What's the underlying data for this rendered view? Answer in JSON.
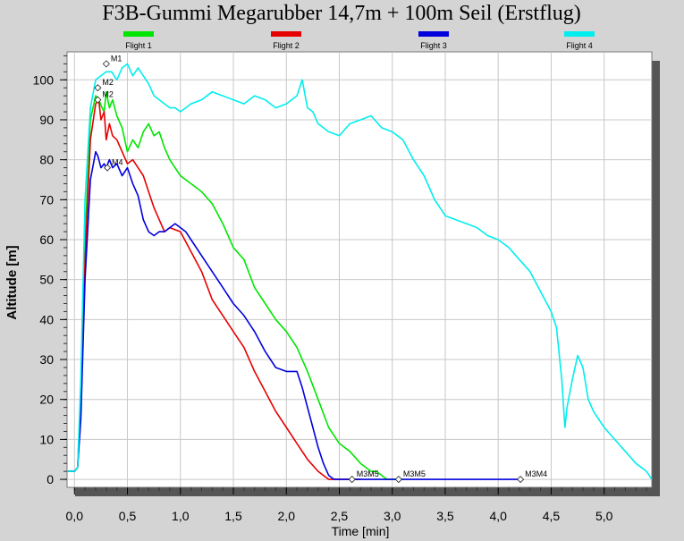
{
  "chart_data": {
    "type": "line",
    "title": "F3B-Gummi Megarubber 14,7m + 100m Seil (Erstflug)",
    "xlabel": "Time [min]",
    "ylabel": "Altitude [m]",
    "xlim": [
      -0.07,
      5.45
    ],
    "ylim": [
      -2,
      107
    ],
    "x_ticks": [
      0.0,
      0.5,
      1.0,
      1.5,
      2.0,
      2.5,
      3.0,
      3.5,
      4.0,
      4.5,
      5.0
    ],
    "x_tick_labels": [
      "0,0",
      "0,5",
      "1,0",
      "1,5",
      "2,0",
      "2,5",
      "3,0",
      "3,5",
      "4,0",
      "4,5",
      "5,0"
    ],
    "y_ticks": [
      0,
      10,
      20,
      30,
      40,
      50,
      60,
      70,
      80,
      90,
      100
    ],
    "y_tick_labels": [
      "0",
      "10",
      "20",
      "30",
      "40",
      "50",
      "60",
      "70",
      "80",
      "90",
      "100"
    ],
    "grid": true,
    "legend_position": "top",
    "series": [
      {
        "name": "Flight 1",
        "color": "#00e600",
        "x": [
          -0.07,
          0.0,
          0.03,
          0.06,
          0.1,
          0.15,
          0.2,
          0.23,
          0.26,
          0.28,
          0.3,
          0.33,
          0.36,
          0.4,
          0.45,
          0.5,
          0.55,
          0.6,
          0.65,
          0.7,
          0.75,
          0.8,
          0.85,
          0.9,
          0.95,
          1.0,
          1.05,
          1.1,
          1.2,
          1.3,
          1.4,
          1.5,
          1.6,
          1.7,
          1.8,
          1.9,
          2.0,
          2.1,
          2.2,
          2.3,
          2.4,
          2.5,
          2.6,
          2.7,
          2.75,
          2.8,
          2.85,
          2.9,
          2.95,
          3.0,
          3.05,
          3.1
        ],
        "y": [
          2,
          2,
          3,
          20,
          60,
          90,
          96,
          95,
          93,
          92,
          97,
          93,
          95,
          91,
          88,
          82,
          85,
          83,
          87,
          89,
          86,
          87,
          83,
          80,
          78,
          76,
          75,
          74,
          72,
          69,
          64,
          58,
          55,
          48,
          44,
          40,
          37,
          33,
          27,
          20,
          13,
          9,
          7,
          4,
          3,
          2,
          2,
          1,
          0,
          0,
          0,
          0
        ]
      },
      {
        "name": "Flight 2",
        "color": "#e60000",
        "x": [
          -0.07,
          0.0,
          0.03,
          0.06,
          0.1,
          0.15,
          0.2,
          0.23,
          0.25,
          0.28,
          0.3,
          0.33,
          0.36,
          0.4,
          0.45,
          0.5,
          0.55,
          0.6,
          0.65,
          0.7,
          0.75,
          0.8,
          0.85,
          0.9,
          1.0,
          1.1,
          1.2,
          1.3,
          1.4,
          1.5,
          1.6,
          1.7,
          1.8,
          1.9,
          2.0,
          2.1,
          2.2,
          2.3,
          2.35,
          2.4,
          2.45,
          2.5,
          2.55,
          2.6,
          2.65,
          2.7
        ],
        "y": [
          2,
          2,
          3,
          20,
          55,
          85,
          94,
          95,
          90,
          92,
          85,
          89,
          86,
          85,
          82,
          79,
          80,
          78,
          76,
          72,
          68,
          65,
          62,
          63,
          62,
          57,
          52,
          45,
          41,
          37,
          33,
          27,
          22,
          17,
          13,
          9,
          5,
          2,
          1,
          0,
          0,
          0,
          0,
          0,
          0,
          0
        ]
      },
      {
        "name": "Flight 3",
        "color": "#0000dd",
        "x": [
          -0.07,
          0.0,
          0.03,
          0.06,
          0.1,
          0.15,
          0.2,
          0.22,
          0.25,
          0.28,
          0.3,
          0.33,
          0.36,
          0.4,
          0.45,
          0.5,
          0.55,
          0.6,
          0.65,
          0.7,
          0.75,
          0.8,
          0.85,
          0.9,
          0.95,
          1.0,
          1.05,
          1.1,
          1.2,
          1.3,
          1.4,
          1.5,
          1.6,
          1.7,
          1.8,
          1.9,
          2.0,
          2.1,
          2.15,
          2.2,
          2.25,
          2.3,
          2.35,
          2.4,
          2.45,
          2.5,
          2.7,
          3.0,
          3.3,
          3.5,
          3.7,
          4.0,
          4.2
        ],
        "y": [
          2,
          2,
          3,
          15,
          50,
          75,
          82,
          81,
          78,
          79,
          78,
          80,
          78,
          79,
          76,
          78,
          74,
          71,
          65,
          62,
          61,
          62,
          62,
          63,
          64,
          63,
          62,
          60,
          56,
          52,
          48,
          44,
          41,
          37,
          32,
          28,
          27,
          27,
          23,
          18,
          13,
          8,
          4,
          1,
          0,
          0,
          0,
          0,
          0,
          0,
          0,
          0,
          0
        ]
      },
      {
        "name": "Flight 4",
        "color": "#00eeee",
        "x": [
          -0.07,
          0.0,
          0.03,
          0.06,
          0.1,
          0.15,
          0.2,
          0.25,
          0.3,
          0.35,
          0.4,
          0.45,
          0.5,
          0.55,
          0.6,
          0.65,
          0.7,
          0.75,
          0.8,
          0.85,
          0.9,
          0.95,
          1.0,
          1.05,
          1.1,
          1.2,
          1.3,
          1.4,
          1.5,
          1.6,
          1.7,
          1.8,
          1.9,
          2.0,
          2.1,
          2.15,
          2.2,
          2.25,
          2.3,
          2.4,
          2.5,
          2.6,
          2.7,
          2.8,
          2.9,
          3.0,
          3.1,
          3.2,
          3.3,
          3.4,
          3.5,
          3.6,
          3.7,
          3.8,
          3.9,
          4.0,
          4.1,
          4.2,
          4.3,
          4.4,
          4.5,
          4.55,
          4.6,
          4.63,
          4.65,
          4.7,
          4.75,
          4.8,
          4.85,
          4.9,
          5.0,
          5.1,
          5.2,
          5.3,
          5.4,
          5.45
        ],
        "y": [
          2,
          2,
          3,
          25,
          70,
          93,
          100,
          101,
          102,
          102,
          100,
          103,
          104,
          101,
          103,
          101,
          99,
          96,
          95,
          94,
          93,
          93,
          92,
          93,
          94,
          95,
          97,
          96,
          95,
          94,
          96,
          95,
          93,
          94,
          96,
          100,
          93,
          92,
          89,
          87,
          86,
          89,
          90,
          91,
          88,
          87,
          85,
          80,
          76,
          70,
          66,
          65,
          64,
          63,
          61,
          60,
          58,
          55,
          52,
          47,
          42,
          38,
          25,
          13,
          18,
          25,
          31,
          28,
          20,
          17,
          13,
          10,
          7,
          4,
          2,
          0
        ]
      }
    ],
    "annotations": [
      {
        "label": "M1",
        "x": 0.3,
        "y": 104
      },
      {
        "label": "M2",
        "x": 0.22,
        "y": 98
      },
      {
        "label": "M2",
        "x": 0.22,
        "y": 95
      },
      {
        "label": "M4",
        "x": 0.31,
        "y": 78
      },
      {
        "label": "M3M5",
        "x": 2.62,
        "y": 0
      },
      {
        "label": "M3M5",
        "x": 3.06,
        "y": 0
      },
      {
        "label": "M3M4",
        "x": 4.21,
        "y": 0
      }
    ]
  }
}
